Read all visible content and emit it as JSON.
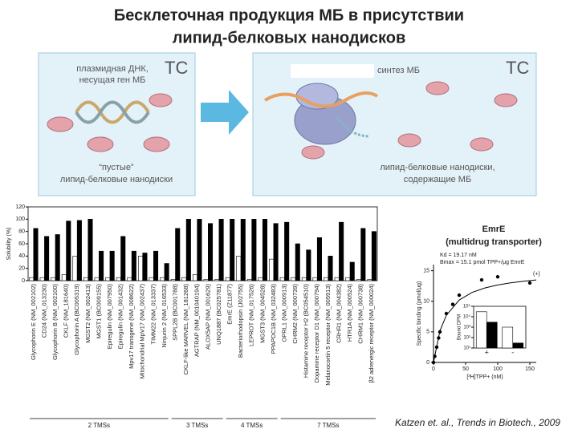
{
  "title": [
    "Бесклеточная продукция МБ в присутствии",
    "липид-белковых нанодисков"
  ],
  "diagram": {
    "left_top": [
      "плазмидная ДНК,",
      "несущая ген МБ"
    ],
    "left_tag": "TC",
    "left_bottom": [
      "“пустые”",
      "липид-белковые нанодиски"
    ],
    "right_top": "синтез МБ",
    "right_tag": "TC",
    "right_bottom": [
      "липид-белковые нанодиски,",
      "содержащие МБ"
    ]
  },
  "chart_data": [
    {
      "type": "bar",
      "ylabel": "Solubility (%)",
      "categories": [
        "Glycophorin E (NM_002102)",
        "CD24 (NM_013230)",
        "Glycophorin B (NM_002100)",
        "CKLF (NM_181640)",
        "Glycophorin A (BC005319)",
        "MGST2 (NM_002413)",
        "MGST1 (BC009155)",
        "Epiregulin (NM_007950)",
        "Epiregulin (NM_001432)",
        "Mpv17 transgene (NM_008622)",
        "Mitochondrial MpV17 (NM_002437)",
        "TIMM22 (NM_013337)",
        "Ninjurin 2 (NM_016533)",
        "SPPL2B (BC001788)",
        "CKLF-like MARVEL (NM_181268)",
        "AGTRAP (NM_001040194)",
        "ALOX5AP (NM_001629)",
        "UNQ1887 (BC025781)",
        "EmrE (Z11877)",
        "Bacteriorhodopsin (J02755)",
        "LEPROT (NM_017526)",
        "MGST3 (NM_004528)",
        "PPAPDC1B (NM_032483)",
        "OPRL1 (NM_000913)",
        "CHRM2 (NM_000739)",
        "Histamine receptor H2 (BC054510)",
        "Dopamine receptor D1 (NM_000794)",
        "Melanocortin 5 receptor (NM_005913)",
        "CRHR1 (NM_004382)",
        "HTR1A (NM_000524)",
        "CHRM1 (NM_000738)",
        "β2 adrenergic receptor (NM_000024)"
      ],
      "label_colors": [
        "#222",
        "#222",
        "#222",
        "#222",
        "#222",
        "#222",
        "#c0392b",
        "#c0392b",
        "#222",
        "#c0392b",
        "#222",
        "#222",
        "#222",
        "#222",
        "#222",
        "#222",
        "#222",
        "#222",
        "#2e8b2e",
        "#2e8b2e",
        "#222",
        "#222",
        "#222",
        "#222",
        "#222",
        "#222",
        "#222",
        "#222",
        "#222",
        "#222",
        "#222",
        "#222"
      ],
      "groups": [
        {
          "label": "2 TMSs",
          "count": 13
        },
        {
          "label": "3 TMSs",
          "count": 5
        },
        {
          "label": "4 TMSs",
          "count": 5
        },
        {
          "label": "7 TMSs",
          "count": 9
        }
      ],
      "series": [
        {
          "color": "#ffffff",
          "values": [
            5,
            5,
            5,
            10,
            40,
            5,
            5,
            5,
            5,
            5,
            40,
            5,
            5,
            2,
            5,
            10,
            2,
            2,
            5,
            40,
            2,
            5,
            35,
            5,
            5,
            5,
            5,
            5,
            5,
            5,
            2,
            2
          ]
        },
        {
          "color": "#000000",
          "values": [
            85,
            72,
            75,
            97,
            98,
            100,
            48,
            48,
            72,
            48,
            45,
            48,
            28,
            85,
            100,
            100,
            93,
            100,
            100,
            100,
            100,
            100,
            93,
            95,
            60,
            50,
            70,
            40,
            95,
            30,
            85,
            80
          ]
        }
      ],
      "ylim": [
        0,
        120
      ],
      "yticks": [
        0,
        20,
        40,
        60,
        80,
        100,
        120
      ]
    },
    {
      "type": "scatter",
      "title": [
        "EmrE",
        "(multidrug transporter)"
      ],
      "annotations": [
        "Kd = 19.17 nM",
        "Bmax = 15.1 pmol TPP+/μg EmrE",
        "(+)"
      ],
      "xlabel": "[³H]TPP+ (nM)",
      "ylabel": "Specific binding (pmol/μg)",
      "series": [
        {
          "color": "#000000",
          "x": [
            0,
            2,
            5,
            8,
            10,
            20,
            30,
            40,
            75,
            100,
            150
          ],
          "y": [
            0,
            1,
            2.5,
            4,
            5,
            8,
            9.5,
            11,
            13.5,
            14,
            13
          ]
        }
      ],
      "fit": {
        "color": "#000000",
        "x": [
          0,
          10,
          20,
          40,
          60,
          80,
          100,
          120,
          140,
          160
        ],
        "y": [
          0,
          5.18,
          7.71,
          10.21,
          11.45,
          12.18,
          12.67,
          13.02,
          13.28,
          13.49
        ]
      },
      "xlim": [
        0,
        160
      ],
      "xticks": [
        0,
        50,
        100,
        150
      ],
      "ylim": [
        0,
        16
      ],
      "yticks": [
        0,
        5,
        10,
        15
      ]
    },
    {
      "type": "bar",
      "log": true,
      "ylabel": "Bound DPM",
      "categories": [
        "+",
        "-"
      ],
      "series": [
        {
          "color": "#ffffff",
          "values": [
            30000,
            1000
          ]
        },
        {
          "color": "#000000",
          "values": [
            3000,
            30
          ]
        }
      ],
      "ylim": [
        10,
        100000
      ],
      "yticks": [
        {
          "value": 10,
          "label": "10¹"
        },
        {
          "value": 100,
          "label": "10²"
        },
        {
          "value": 1000,
          "label": "10³"
        },
        {
          "value": 10000,
          "label": "10⁴"
        },
        {
          "value": 100000,
          "label": "10⁵"
        }
      ]
    }
  ],
  "citation": "Katzen et. al., Trends in Biotech., 2009"
}
